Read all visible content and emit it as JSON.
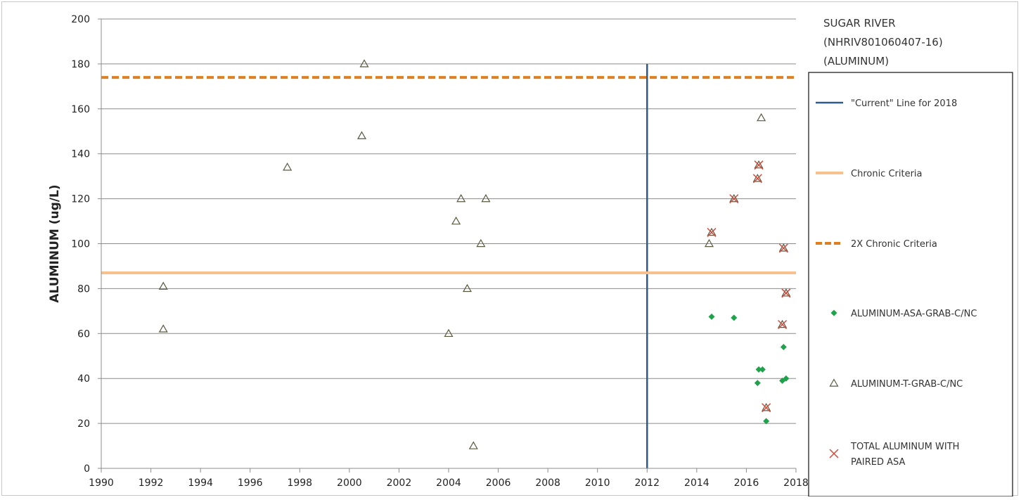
{
  "chart_data": {
    "type": "scatter",
    "title": [
      "SUGAR RIVER",
      "(NHRIV801060407-16)",
      "(ALUMINUM)"
    ],
    "xlabel": "",
    "ylabel": "ALUMINUM (ug/L)",
    "xlim": [
      1990,
      2018
    ],
    "ylim": [
      0,
      200
    ],
    "xticks": [
      "1990",
      "1992",
      "1994",
      "1996",
      "1998",
      "2000",
      "2002",
      "2004",
      "2006",
      "2008",
      "2010",
      "2012",
      "2014",
      "2016",
      "2018"
    ],
    "yticks": [
      "0",
      "20",
      "40",
      "60",
      "80",
      "100",
      "120",
      "140",
      "160",
      "180",
      "200"
    ],
    "grid": "horizontal",
    "legend_position": "right",
    "reference_lines": [
      {
        "name": "\"Current\" Line for 2018",
        "orientation": "vertical",
        "x": 2012,
        "y_range": [
          0,
          180
        ],
        "color": "#2e5b8a",
        "style": "solid"
      },
      {
        "name": "Chronic Criteria",
        "orientation": "horizontal",
        "y": 87,
        "color": "#f8c08c",
        "style": "solid"
      },
      {
        "name": "2X Chronic Criteria",
        "orientation": "horizontal",
        "y": 174,
        "color": "#e07f1f",
        "style": "dashed"
      }
    ],
    "series": [
      {
        "name": "ALUMINUM-ASA-GRAB-C/NC",
        "marker": "diamond",
        "color": "#1fa34a",
        "points": [
          [
            2014.6,
            67.5
          ],
          [
            2015.5,
            67
          ],
          [
            2016.45,
            38
          ],
          [
            2016.5,
            44
          ],
          [
            2016.65,
            44
          ],
          [
            2016.8,
            21
          ],
          [
            2017.45,
            39
          ],
          [
            2017.5,
            54
          ],
          [
            2017.6,
            40
          ]
        ]
      },
      {
        "name": "ALUMINUM-T-GRAB-C/NC",
        "marker": "triangle",
        "color": "#5a5a40",
        "points": [
          [
            1992.5,
            81
          ],
          [
            1992.5,
            62
          ],
          [
            1997.5,
            134
          ],
          [
            2000.6,
            180
          ],
          [
            2000.5,
            148
          ],
          [
            2004.0,
            60
          ],
          [
            2004.3,
            110
          ],
          [
            2004.5,
            120
          ],
          [
            2004.75,
            80
          ],
          [
            2005.0,
            10
          ],
          [
            2005.3,
            100
          ],
          [
            2005.5,
            120
          ],
          [
            2014.5,
            100
          ],
          [
            2014.6,
            105
          ],
          [
            2015.5,
            120
          ],
          [
            2016.45,
            129
          ],
          [
            2016.5,
            135
          ],
          [
            2016.6,
            156
          ],
          [
            2016.8,
            27
          ],
          [
            2017.45,
            64
          ],
          [
            2017.5,
            98
          ],
          [
            2017.6,
            78
          ]
        ]
      },
      {
        "name": "TOTAL ALUMINUM WITH PAIRED ASA",
        "marker": "x",
        "color": "#d24a3c",
        "points": [
          [
            2014.6,
            105
          ],
          [
            2015.5,
            120
          ],
          [
            2016.45,
            129
          ],
          [
            2016.5,
            135
          ],
          [
            2016.8,
            27
          ],
          [
            2017.45,
            64
          ],
          [
            2017.5,
            98
          ],
          [
            2017.6,
            78
          ]
        ]
      }
    ],
    "legend": [
      "\"Current\" Line for 2018",
      "Chronic Criteria",
      "2X Chronic Criteria",
      "ALUMINUM-ASA-GRAB-C/NC",
      "ALUMINUM-T-GRAB-C/NC",
      "TOTAL ALUMINUM WITH PAIRED ASA"
    ]
  }
}
